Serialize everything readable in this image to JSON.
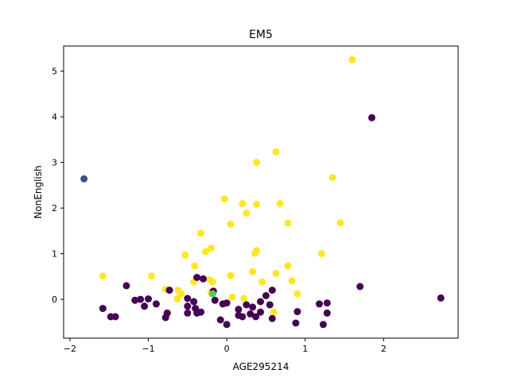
{
  "chart_data": {
    "type": "scatter",
    "title": "EM5",
    "xlabel": "AGE295214",
    "ylabel": "NonEnglish",
    "xlim": [
      -2.08,
      2.95
    ],
    "ylim": [
      -0.85,
      5.55
    ],
    "xticks": [
      -2,
      -1,
      0,
      1,
      2
    ],
    "yticks": [
      0,
      1,
      2,
      3,
      4,
      5
    ],
    "grid": false,
    "legend": "none",
    "colors": {
      "purple": "#440154",
      "blue": "#3b528b",
      "green": "#5ec962",
      "yellow": "#fde725"
    },
    "series": [
      {
        "color": "#fde725",
        "points": [
          [
            1.6,
            5.25
          ],
          [
            0.63,
            3.23
          ],
          [
            0.38,
            3.0
          ],
          [
            1.35,
            2.67
          ],
          [
            -0.03,
            2.2
          ],
          [
            0.2,
            2.1
          ],
          [
            0.38,
            2.08
          ],
          [
            0.68,
            2.1
          ],
          [
            0.25,
            1.89
          ],
          [
            0.05,
            1.65
          ],
          [
            0.78,
            1.67
          ],
          [
            1.45,
            1.68
          ],
          [
            -0.33,
            1.45
          ],
          [
            -0.2,
            1.12
          ],
          [
            -0.27,
            1.05
          ],
          [
            0.38,
            1.07
          ],
          [
            0.36,
            1.01
          ],
          [
            -0.53,
            0.97
          ],
          [
            1.21,
            1.0
          ],
          [
            -0.41,
            0.73
          ],
          [
            0.78,
            0.73
          ],
          [
            0.33,
            0.61
          ],
          [
            0.63,
            0.57
          ],
          [
            -1.58,
            0.51
          ],
          [
            -0.96,
            0.51
          ],
          [
            0.05,
            0.52
          ],
          [
            0.45,
            0.38
          ],
          [
            0.83,
            0.41
          ],
          [
            -0.42,
            0.38
          ],
          [
            -0.22,
            0.43
          ],
          [
            -0.18,
            0.38
          ],
          [
            -0.62,
            0.2
          ],
          [
            -0.78,
            0.22
          ],
          [
            -0.58,
            0.12
          ],
          [
            -0.63,
            0.01
          ],
          [
            0.07,
            0.05
          ],
          [
            0.22,
            0.02
          ],
          [
            0.9,
            0.12
          ],
          [
            0.6,
            -0.28
          ],
          [
            -0.75,
            -0.3
          ],
          [
            -0.2,
            0.15
          ]
        ]
      },
      {
        "color": "#440154",
        "points": [
          [
            1.85,
            3.98
          ],
          [
            1.7,
            0.28
          ],
          [
            2.73,
            0.03
          ],
          [
            -1.28,
            0.3
          ],
          [
            -1.17,
            -0.02
          ],
          [
            -1.1,
            0.0
          ],
          [
            -1.0,
            0.01
          ],
          [
            -1.05,
            -0.15
          ],
          [
            -0.9,
            -0.1
          ],
          [
            -0.73,
            0.2
          ],
          [
            -0.78,
            -0.4
          ],
          [
            -0.76,
            -0.3
          ],
          [
            -1.58,
            -0.2
          ],
          [
            -1.48,
            -0.38
          ],
          [
            -1.42,
            -0.38
          ],
          [
            -0.5,
            0.02
          ],
          [
            -0.42,
            -0.05
          ],
          [
            -0.5,
            -0.15
          ],
          [
            -0.5,
            -0.3
          ],
          [
            -0.4,
            -0.2
          ],
          [
            -0.38,
            -0.3
          ],
          [
            -0.33,
            -0.28
          ],
          [
            -0.38,
            0.48
          ],
          [
            -0.3,
            0.45
          ],
          [
            -0.17,
            0.18
          ],
          [
            -0.15,
            -0.02
          ],
          [
            -0.05,
            -0.1
          ],
          [
            0.0,
            -0.08
          ],
          [
            -0.08,
            -0.45
          ],
          [
            0.0,
            -0.55
          ],
          [
            0.15,
            -0.22
          ],
          [
            0.15,
            -0.35
          ],
          [
            0.2,
            -0.38
          ],
          [
            0.25,
            -0.12
          ],
          [
            0.3,
            -0.32
          ],
          [
            0.33,
            -0.17
          ],
          [
            0.37,
            -0.38
          ],
          [
            0.43,
            -0.28
          ],
          [
            0.43,
            -0.05
          ],
          [
            0.5,
            0.08
          ],
          [
            0.55,
            -0.12
          ],
          [
            0.58,
            0.2
          ],
          [
            0.58,
            -0.42
          ],
          [
            0.9,
            -0.27
          ],
          [
            0.88,
            -0.52
          ],
          [
            1.18,
            -0.1
          ],
          [
            1.28,
            -0.08
          ],
          [
            1.28,
            -0.3
          ],
          [
            1.23,
            -0.55
          ]
        ]
      },
      {
        "color": "#3b528b",
        "points": [
          [
            -1.82,
            2.64
          ]
        ]
      },
      {
        "color": "#5ec962",
        "points": [
          [
            -0.18,
            0.12
          ]
        ]
      }
    ]
  }
}
